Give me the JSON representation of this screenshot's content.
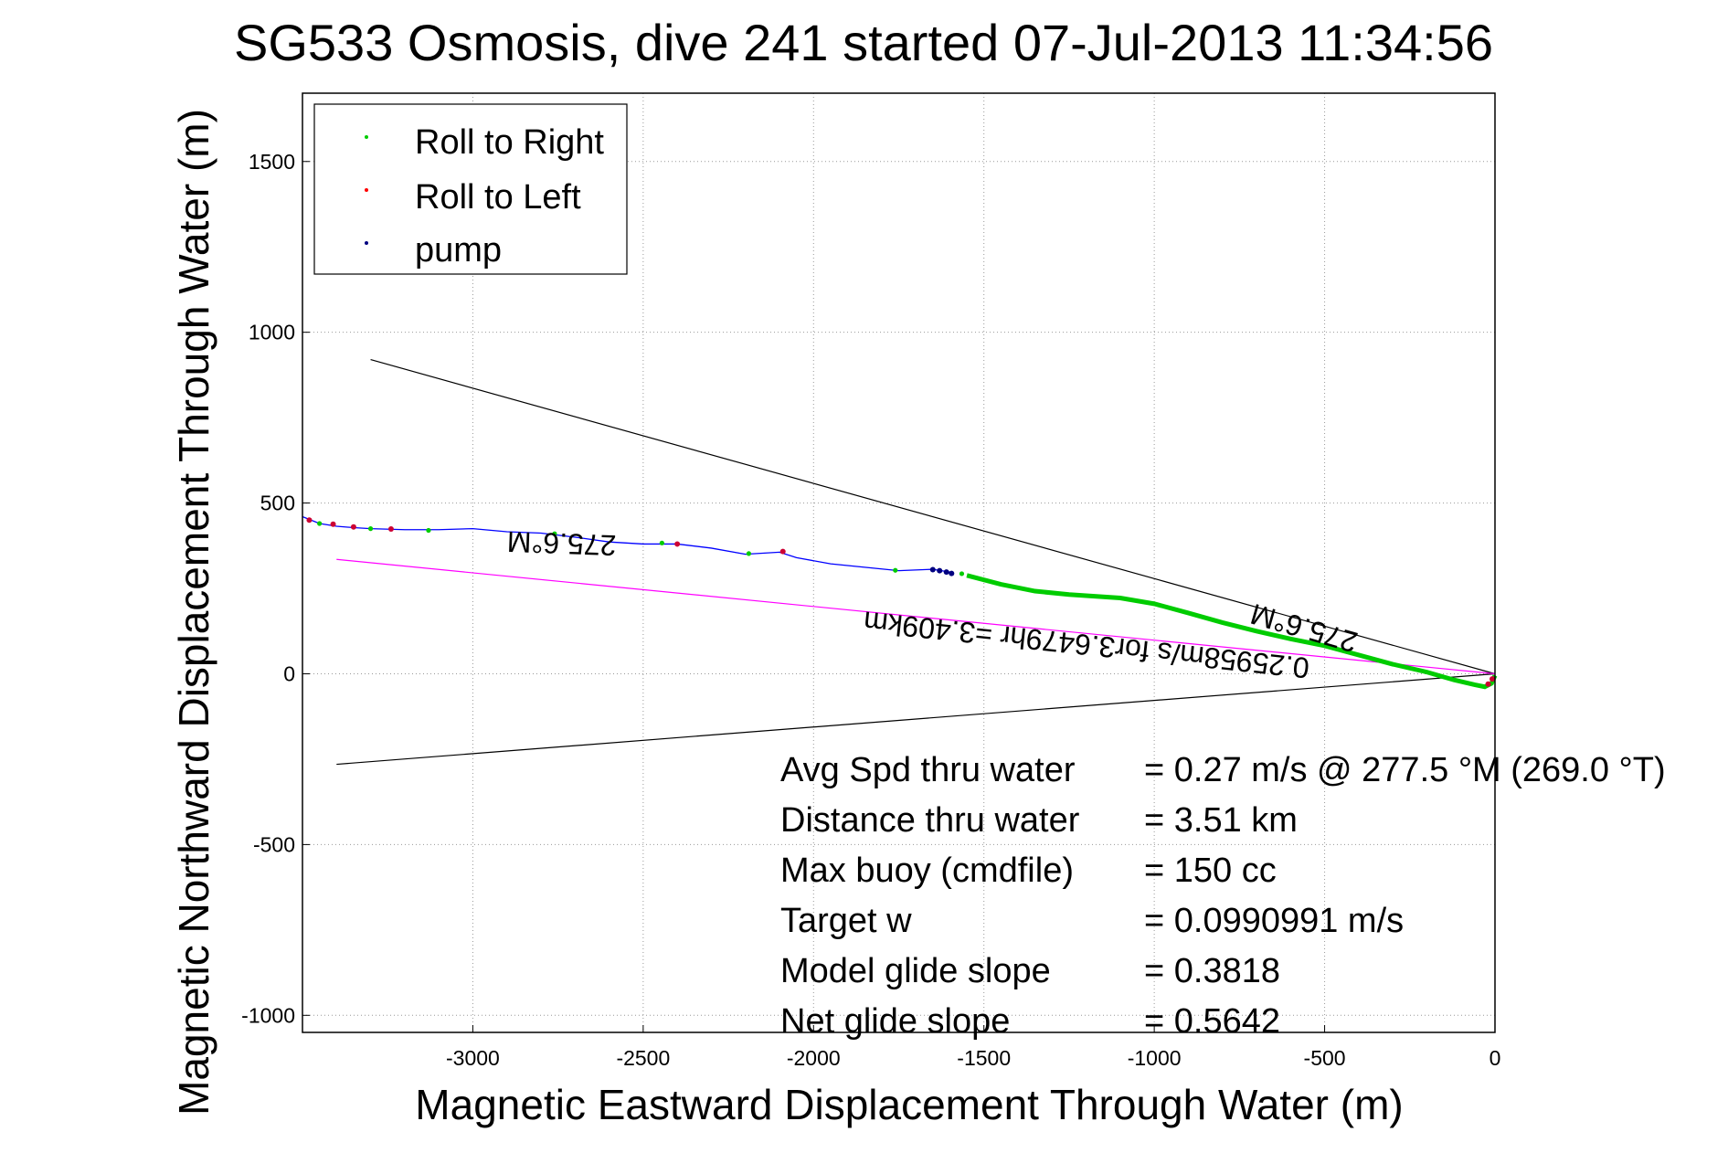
{
  "chart_data": {
    "type": "scatter",
    "title": "SG533 Osmosis, dive 241 started 07-Jul-2013 11:34:56",
    "xlabel": "Magnetic Eastward Displacement Through Water (m)",
    "ylabel": "Magnetic Northward Displacement Through Water (m)",
    "xlim": [
      -3500,
      0
    ],
    "ylim": [
      -1050,
      1700
    ],
    "x_ticks": [
      -3000,
      -2500,
      -2000,
      -1500,
      -1000,
      -500,
      0
    ],
    "y_ticks": [
      -1000,
      -500,
      0,
      500,
      1000,
      1500
    ],
    "grid": true,
    "legend_position": "top-left",
    "legend": [
      {
        "label": "Roll to Right",
        "color": "#00cc00"
      },
      {
        "label": "Roll to Left",
        "color": "#ff0000"
      },
      {
        "label": "pump",
        "color": "#000080"
      }
    ],
    "track": [
      [
        -3500,
        460
      ],
      [
        -3450,
        440
      ],
      [
        -3400,
        432
      ],
      [
        -3350,
        428
      ],
      [
        -3300,
        425
      ],
      [
        -3200,
        422
      ],
      [
        -3100,
        422
      ],
      [
        -3000,
        425
      ],
      [
        -2900,
        416
      ],
      [
        -2800,
        412
      ],
      [
        -2700,
        400
      ],
      [
        -2600,
        386
      ],
      [
        -2500,
        380
      ],
      [
        -2400,
        380
      ],
      [
        -2300,
        368
      ],
      [
        -2200,
        350
      ],
      [
        -2100,
        356
      ],
      [
        -2050,
        340
      ],
      [
        -1950,
        322
      ],
      [
        -1850,
        312
      ],
      [
        -1750,
        302
      ],
      [
        -1650,
        306
      ],
      [
        -1600,
        298
      ],
      [
        -1550,
        288
      ],
      [
        -1450,
        262
      ],
      [
        -1350,
        242
      ],
      [
        -1250,
        232
      ],
      [
        -1100,
        222
      ],
      [
        -1000,
        205
      ],
      [
        -900,
        178
      ],
      [
        -800,
        150
      ],
      [
        -700,
        125
      ],
      [
        -600,
        102
      ],
      [
        -500,
        82
      ],
      [
        -400,
        55
      ],
      [
        -300,
        28
      ],
      [
        -200,
        5
      ],
      [
        -120,
        -18
      ],
      [
        -60,
        -32
      ],
      [
        -30,
        -38
      ],
      [
        -10,
        -28
      ],
      [
        0,
        -5
      ]
    ],
    "track_color": "#0000ff",
    "green_segment_from_x": -1590,
    "roll_right_points": [
      [
        -3450,
        440
      ],
      [
        -3300,
        425
      ],
      [
        -3130,
        420
      ],
      [
        -2760,
        410
      ],
      [
        -2445,
        383
      ],
      [
        -2190,
        352
      ],
      [
        -1760,
        303
      ],
      [
        -1565,
        293
      ]
    ],
    "roll_left_points": [
      [
        -3480,
        450
      ],
      [
        -3410,
        438
      ],
      [
        -3350,
        430
      ],
      [
        -3240,
        424
      ],
      [
        -2400,
        380
      ],
      [
        -2090,
        358
      ],
      [
        -20,
        -30
      ],
      [
        -8,
        -15
      ]
    ],
    "pump_points": [
      [
        -1650,
        305
      ],
      [
        -1630,
        302
      ],
      [
        -1610,
        298
      ],
      [
        -1595,
        294
      ]
    ],
    "heading_lines": [
      {
        "from": [
          -3300,
          920
        ],
        "to": [
          0,
          0
        ],
        "color": "#000000"
      },
      {
        "from": [
          -3400,
          -265
        ],
        "to": [
          0,
          0
        ],
        "color": "#000000"
      },
      {
        "from": [
          -3400,
          335
        ],
        "to": [
          0,
          0
        ],
        "color": "#ff00ff"
      }
    ],
    "annotations": {
      "heading_upper": "275.6°M",
      "heading_right": "275.6°M",
      "speed_line": "0.25958m/s for3.6479hr =3.409km"
    },
    "summary": [
      {
        "label": "Avg Spd thru water",
        "value": "=  0.27 m/s @ 277.5 °M (269.0 °T)"
      },
      {
        "label": "Distance thru water",
        "value": "=  3.51 km"
      },
      {
        "label": "Max buoy (cmdfile)",
        "value": "= 150 cc"
      },
      {
        "label": "Target w",
        "value": "= 0.0990991 m/s"
      },
      {
        "label": "Model glide slope",
        "value": "= 0.3818"
      },
      {
        "label": "Net glide slope",
        "value": "= 0.5642"
      }
    ]
  }
}
